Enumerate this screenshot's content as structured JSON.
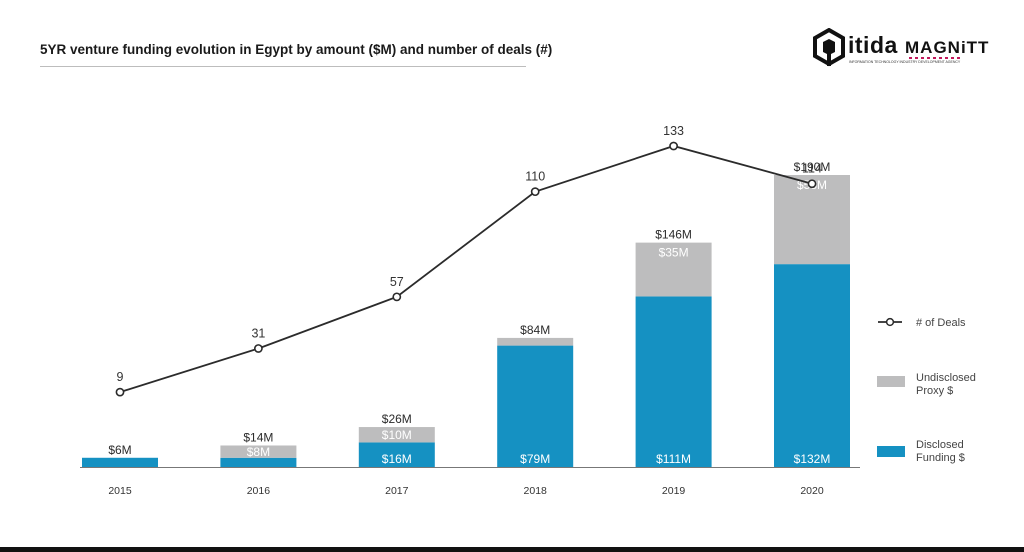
{
  "header": {
    "title": "5YR venture funding evolution in Egypt by amount ($M) and number of deals (#)",
    "logo_itida": "itida",
    "logo_itida_tagline": "INFORMATION TECHNOLOGY INDUSTRY DEVELOPMENT AGENCY",
    "logo_magnitt": "MAGNiTT"
  },
  "chart_data": {
    "type": "bar",
    "title": "5YR venture funding evolution in Egypt by amount ($M) and number of deals (#)",
    "categories": [
      "2015",
      "2016",
      "2017",
      "2018",
      "2019",
      "2020"
    ],
    "series": [
      {
        "name": "Disclosed Funding $",
        "kind": "stacked-bar",
        "color": "#1591c2",
        "values": [
          6,
          6,
          16,
          79,
          111,
          132
        ],
        "labels": [
          "",
          "",
          "$16M",
          "$79M",
          "$111M",
          "$132M"
        ]
      },
      {
        "name": "Undisclosed Proxy $",
        "kind": "stacked-bar",
        "color": "#bdbdbe",
        "values": [
          0,
          8,
          10,
          5,
          35,
          58
        ],
        "labels": [
          "",
          "$8M",
          "$10M",
          "",
          "$35M",
          "$58M"
        ]
      },
      {
        "name": "# of Deals",
        "kind": "line",
        "color": "#2b2b2b",
        "values": [
          9,
          31,
          57,
          110,
          133,
          114
        ]
      }
    ],
    "totals": [
      "$6M",
      "$14M",
      "$26M",
      "$84M",
      "$146M",
      "$190M"
    ],
    "legend": [
      {
        "name": "# of Deals",
        "marker": "line"
      },
      {
        "name": "Undisclosed Proxy $",
        "lines": [
          "Undisclosed",
          "Proxy $"
        ],
        "marker": "box",
        "color": "#bdbdbe"
      },
      {
        "name": "Disclosed Funding $",
        "lines": [
          "Disclosed",
          "Funding $"
        ],
        "marker": "box",
        "color": "#1591c2"
      }
    ],
    "legend_position": "right",
    "xlabel": "",
    "ylabel": "",
    "ylim_bars": [
      0,
      190
    ],
    "ylim_deals": [
      0,
      133
    ],
    "grid": false
  }
}
